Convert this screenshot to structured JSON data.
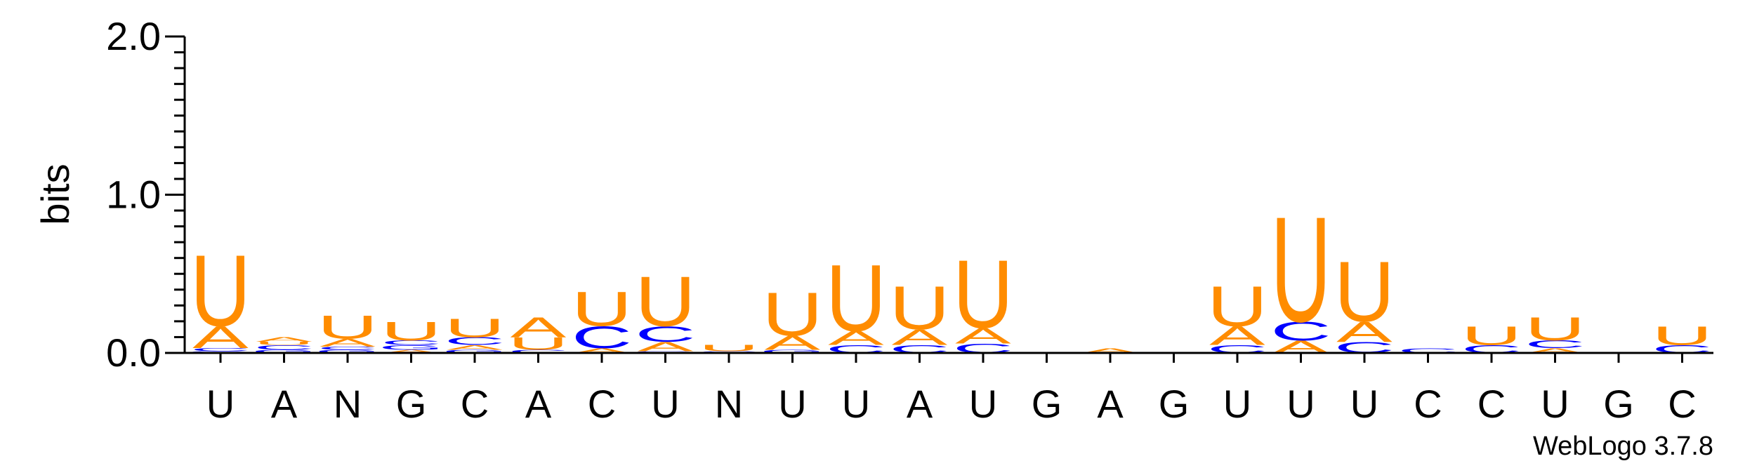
{
  "chart_data": {
    "type": "sequence-logo",
    "ylabel": "bits",
    "ylim": [
      0,
      2.0
    ],
    "y_ticks": [
      "0.0",
      "1.0",
      "2.0"
    ],
    "positions": [
      "U",
      "A",
      "N",
      "G",
      "C",
      "A",
      "C",
      "U",
      "N",
      "U",
      "U",
      "A",
      "U",
      "G",
      "A",
      "G",
      "U",
      "U",
      "U",
      "C",
      "C",
      "U",
      "G",
      "C"
    ],
    "stacks": [
      [
        {
          "l": "G",
          "h": 0.012
        },
        {
          "l": "C",
          "h": 0.02
        },
        {
          "l": "A",
          "h": 0.14
        },
        {
          "l": "U",
          "h": 0.46
        }
      ],
      [
        {
          "l": "G",
          "h": 0.02
        },
        {
          "l": "C",
          "h": 0.03
        },
        {
          "l": "U",
          "h": 0.02
        },
        {
          "l": "A",
          "h": 0.03
        }
      ],
      [
        {
          "l": "G",
          "h": 0.02
        },
        {
          "l": "C",
          "h": 0.02
        },
        {
          "l": "A",
          "h": 0.05
        },
        {
          "l": "U",
          "h": 0.15
        }
      ],
      [
        {
          "l": "A",
          "h": 0.02
        },
        {
          "l": "G",
          "h": 0.03
        },
        {
          "l": "C",
          "h": 0.03
        },
        {
          "l": "U",
          "h": 0.12
        }
      ],
      [
        {
          "l": "G",
          "h": 0.02
        },
        {
          "l": "A",
          "h": 0.03
        },
        {
          "l": "C",
          "h": 0.05
        },
        {
          "l": "U",
          "h": 0.12
        }
      ],
      [
        {
          "l": "C",
          "h": 0.02
        },
        {
          "l": "U",
          "h": 0.08
        },
        {
          "l": "A",
          "h": 0.13
        }
      ],
      [
        {
          "l": "A",
          "h": 0.03
        },
        {
          "l": "C",
          "h": 0.14
        },
        {
          "l": "U",
          "h": 0.22
        }
      ],
      [
        {
          "l": "G",
          "h": 0.01
        },
        {
          "l": "A",
          "h": 0.06
        },
        {
          "l": "C",
          "h": 0.1
        },
        {
          "l": "U",
          "h": 0.32
        }
      ],
      [
        {
          "l": "C",
          "h": 0.01
        },
        {
          "l": "U",
          "h": 0.04
        }
      ],
      [
        {
          "l": "G",
          "h": 0.02
        },
        {
          "l": "A",
          "h": 0.09
        },
        {
          "l": "U",
          "h": 0.28
        }
      ],
      [
        {
          "l": "C",
          "h": 0.05
        },
        {
          "l": "A",
          "h": 0.09
        },
        {
          "l": "U",
          "h": 0.43
        }
      ],
      [
        {
          "l": "C",
          "h": 0.05
        },
        {
          "l": "A",
          "h": 0.1
        },
        {
          "l": "U",
          "h": 0.28
        }
      ],
      [
        {
          "l": "C",
          "h": 0.06
        },
        {
          "l": "A",
          "h": 0.1
        },
        {
          "l": "U",
          "h": 0.44
        }
      ],
      [],
      [
        {
          "l": "A",
          "h": 0.03
        }
      ],
      [],
      [
        {
          "l": "C",
          "h": 0.05
        },
        {
          "l": "A",
          "h": 0.12
        },
        {
          "l": "U",
          "h": 0.26
        }
      ],
      [
        {
          "l": "A",
          "h": 0.08
        },
        {
          "l": "C",
          "h": 0.12
        },
        {
          "l": "U",
          "h": 0.68
        }
      ],
      [
        {
          "l": "C",
          "h": 0.07
        },
        {
          "l": "A",
          "h": 0.13
        },
        {
          "l": "U",
          "h": 0.39
        }
      ],
      [
        {
          "l": "C",
          "h": 0.03
        }
      ],
      [
        {
          "l": "C",
          "h": 0.05
        },
        {
          "l": "U",
          "h": 0.12
        }
      ],
      [
        {
          "l": "A",
          "h": 0.03
        },
        {
          "l": "C",
          "h": 0.05
        },
        {
          "l": "U",
          "h": 0.15
        }
      ],
      [],
      [
        {
          "l": "C",
          "h": 0.05
        },
        {
          "l": "U",
          "h": 0.12
        }
      ]
    ],
    "colors": {
      "A": "#ff8c00",
      "U": "#ff8c00",
      "C": "#0000ff",
      "G": "#0000ff",
      "N": "#000000"
    },
    "credit": "WebLogo 3.7.8"
  }
}
